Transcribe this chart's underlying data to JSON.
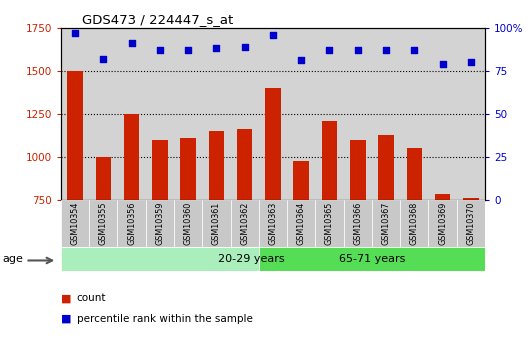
{
  "title": "GDS473 / 224447_s_at",
  "samples": [
    "GSM10354",
    "GSM10355",
    "GSM10356",
    "GSM10359",
    "GSM10360",
    "GSM10361",
    "GSM10362",
    "GSM10363",
    "GSM10364",
    "GSM10365",
    "GSM10366",
    "GSM10367",
    "GSM10368",
    "GSM10369",
    "GSM10370"
  ],
  "counts": [
    1500,
    1000,
    1250,
    1100,
    1110,
    1150,
    1165,
    1400,
    975,
    1210,
    1100,
    1130,
    1050,
    785,
    760
  ],
  "percentiles": [
    97,
    82,
    91,
    87,
    87,
    88,
    89,
    96,
    81,
    87,
    87,
    87,
    87,
    79,
    80
  ],
  "ylim_left": [
    750,
    1750
  ],
  "ylim_right": [
    0,
    100
  ],
  "yticks_left": [
    750,
    1000,
    1250,
    1500,
    1750
  ],
  "yticks_right": [
    0,
    25,
    50,
    75,
    100
  ],
  "bar_color": "#cc2200",
  "dot_color": "#0000cc",
  "group1_label": "20-29 years",
  "group2_label": "65-71 years",
  "group1_count": 7,
  "group2_count": 8,
  "group1_color": "#aaeebb",
  "group2_color": "#55dd55",
  "age_label": "age",
  "legend1": "count",
  "legend2": "percentile rank within the sample",
  "plot_bg_color": "#d3d3d3",
  "tick_bg_color": "#c8c8c8",
  "xlabel_color": "#cc2200",
  "right_axis_color": "#0000cc",
  "grid_color": "#000000",
  "bar_bottom": 750
}
